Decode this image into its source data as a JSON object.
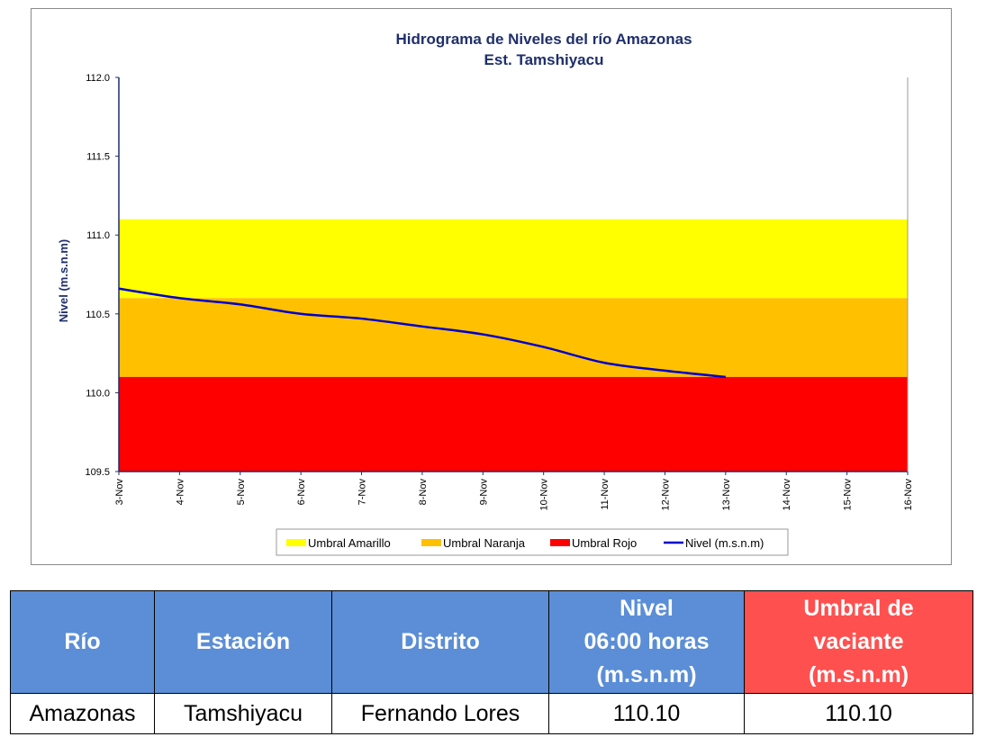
{
  "chart_data": {
    "type": "line",
    "title": "Hidrograma de Niveles del río Amazonas",
    "subtitle": "Est. Tamshiyacu",
    "ylabel": "Nivel (m.s.n.m)",
    "xlabel": "",
    "ylim": [
      109.5,
      112.0
    ],
    "yticks": [
      "109.5",
      "110.0",
      "110.5",
      "111.0",
      "111.5",
      "112.0"
    ],
    "categories": [
      "3-Nov",
      "4-Nov",
      "5-Nov",
      "6-Nov",
      "7-Nov",
      "8-Nov",
      "9-Nov",
      "10-Nov",
      "11-Nov",
      "12-Nov",
      "13-Nov",
      "14-Nov",
      "15-Nov",
      "16-Nov"
    ],
    "bands": [
      {
        "name": "Umbral Amarillo",
        "from": 110.6,
        "to": 111.1,
        "color": "#ffff00"
      },
      {
        "name": "Umbral Naranja",
        "from": 110.1,
        "to": 110.6,
        "color": "#ffc000"
      },
      {
        "name": "Umbral Rojo",
        "from": 109.5,
        "to": 110.1,
        "color": "#ff0000"
      }
    ],
    "series": [
      {
        "name": "Nivel (m.s.n.m)",
        "color": "#0000cc",
        "values": [
          110.66,
          110.6,
          110.56,
          110.5,
          110.47,
          110.42,
          110.37,
          110.29,
          110.19,
          110.14,
          110.1,
          null,
          null,
          null
        ]
      }
    ],
    "legend": "bottom",
    "grid": false
  },
  "table": {
    "headers": {
      "rio": "Río",
      "estacion": "Estación",
      "distrito": "Distrito",
      "nivel": [
        "Nivel",
        "06:00 horas",
        "(m.s.n.m)"
      ],
      "umbral": [
        "Umbral de",
        "vaciante",
        "(m.s.n.m)"
      ]
    },
    "row": {
      "rio": "Amazonas",
      "estacion": "Tamshiyacu",
      "distrito": "Fernando Lores",
      "nivel": "110.10",
      "umbral": "110.10"
    },
    "colors": {
      "header_blue": "#5b8ed6",
      "header_red": "#ff5050"
    }
  }
}
